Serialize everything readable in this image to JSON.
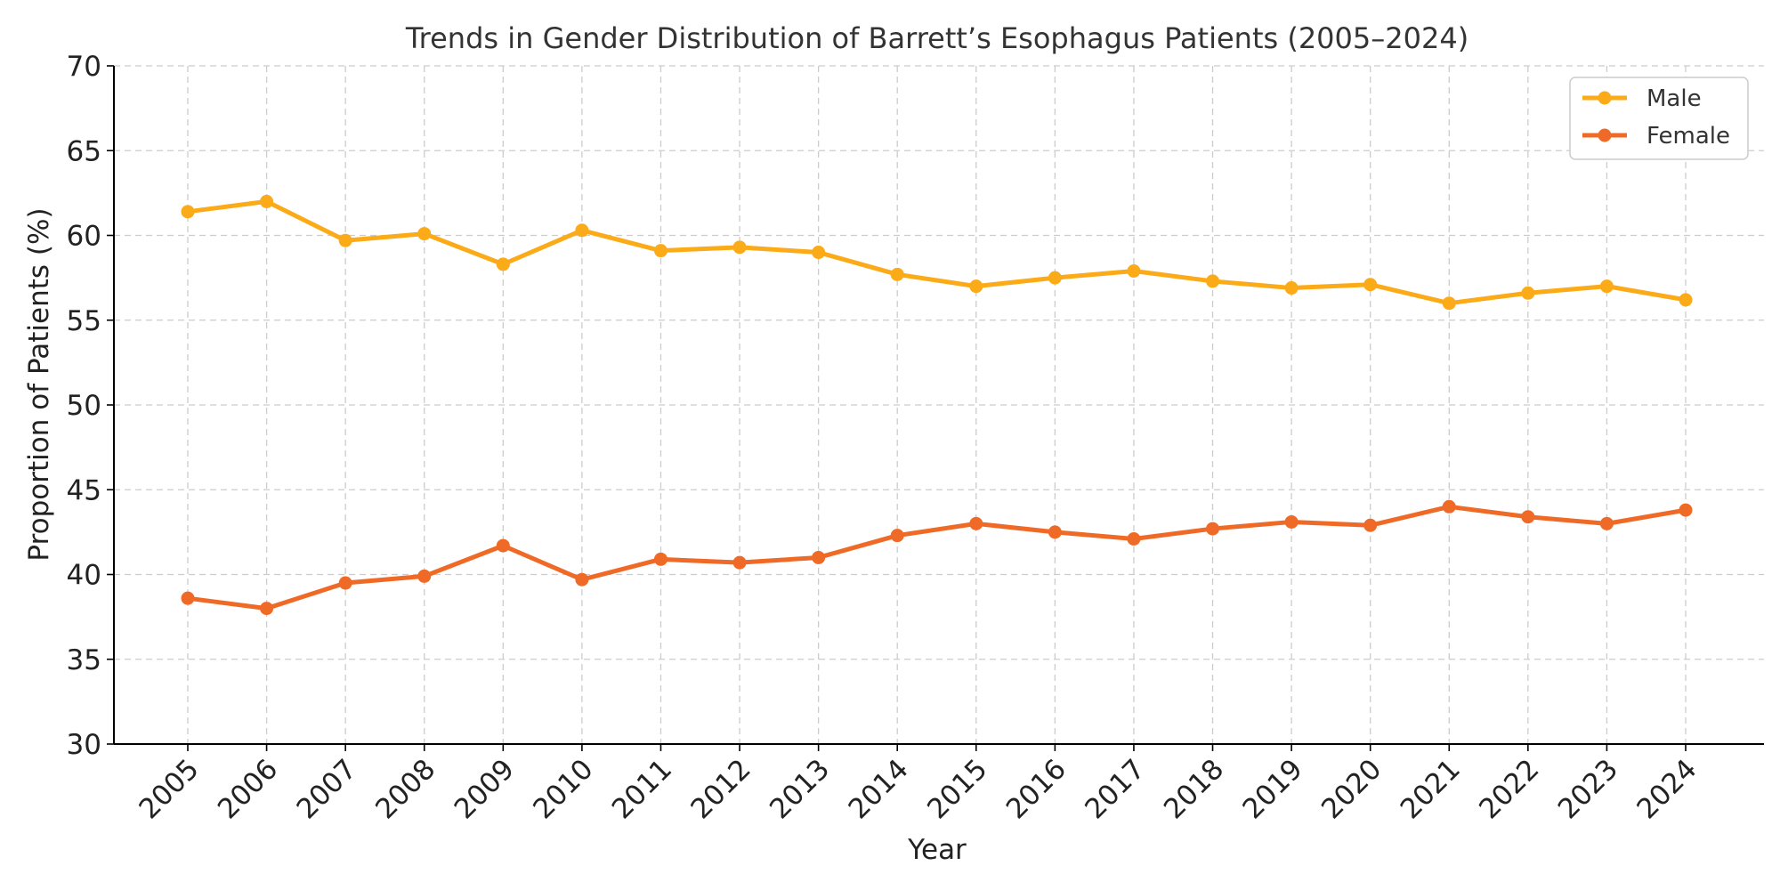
{
  "chart_data": {
    "type": "line",
    "title": "Trends in Gender Distribution of Barrett’s Esophagus Patients (2005–2024)",
    "xlabel": "Year",
    "ylabel": "Proportion of Patients (%)",
    "x": [
      "2005",
      "2006",
      "2007",
      "2008",
      "2009",
      "2010",
      "2011",
      "2012",
      "2013",
      "2014",
      "2015",
      "2016",
      "2017",
      "2018",
      "2019",
      "2020",
      "2021",
      "2022",
      "2023",
      "2024"
    ],
    "yticks": [
      30,
      35,
      40,
      45,
      50,
      55,
      60,
      65,
      70
    ],
    "ylim": [
      30,
      70
    ],
    "grid": true,
    "legend_position": "top-right",
    "series": [
      {
        "name": "Male",
        "color": "#FBAA18",
        "marker": "circle",
        "values": [
          61.4,
          62.0,
          59.7,
          60.1,
          58.3,
          60.3,
          59.1,
          59.3,
          59.0,
          57.7,
          57.0,
          57.5,
          57.9,
          57.3,
          56.9,
          57.1,
          56.0,
          56.6,
          57.0,
          56.2
        ]
      },
      {
        "name": "Female",
        "color": "#F06A27",
        "marker": "circle",
        "values": [
          38.6,
          38.0,
          39.5,
          39.9,
          41.7,
          39.7,
          40.9,
          40.7,
          41.0,
          42.3,
          43.0,
          42.5,
          42.1,
          42.7,
          43.1,
          42.9,
          44.0,
          43.4,
          43.0,
          43.8
        ]
      }
    ]
  }
}
